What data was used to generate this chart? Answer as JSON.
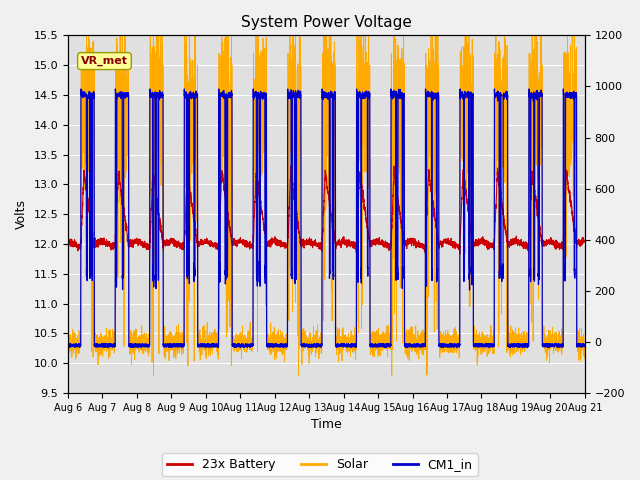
{
  "title": "System Power Voltage",
  "xlabel": "Time",
  "ylabel_left": "Volts",
  "ylim_left": [
    9.5,
    15.5
  ],
  "ylim_right": [
    -200,
    1200
  ],
  "yticks_left": [
    9.5,
    10.0,
    10.5,
    11.0,
    11.5,
    12.0,
    12.5,
    13.0,
    13.5,
    14.0,
    14.5,
    15.0,
    15.5
  ],
  "yticks_right": [
    -200,
    0,
    200,
    400,
    600,
    800,
    1000,
    1200
  ],
  "xtick_labels": [
    "Aug 6",
    "Aug 7",
    "Aug 8",
    "Aug 9",
    "Aug 10",
    "Aug 11",
    "Aug 12",
    "Aug 13",
    "Aug 14",
    "Aug 15",
    "Aug 16",
    "Aug 17",
    "Aug 18",
    "Aug 19",
    "Aug 20",
    "Aug 21"
  ],
  "color_battery": "#cc0000",
  "color_solar": "#ffaa00",
  "color_cm1": "#0000cc",
  "legend_labels": [
    "23x Battery",
    "Solar",
    "CM1_in"
  ],
  "annotation_text": "VR_met",
  "annotation_color": "#880000",
  "annotation_bg": "#ffff99",
  "background_color": "#e0e0e0",
  "figure_bg": "#f0f0f0",
  "grid_color": "#ffffff",
  "title_fontsize": 11,
  "axis_fontsize": 9,
  "tick_fontsize": 8,
  "num_days": 15,
  "pts_per_day": 288
}
